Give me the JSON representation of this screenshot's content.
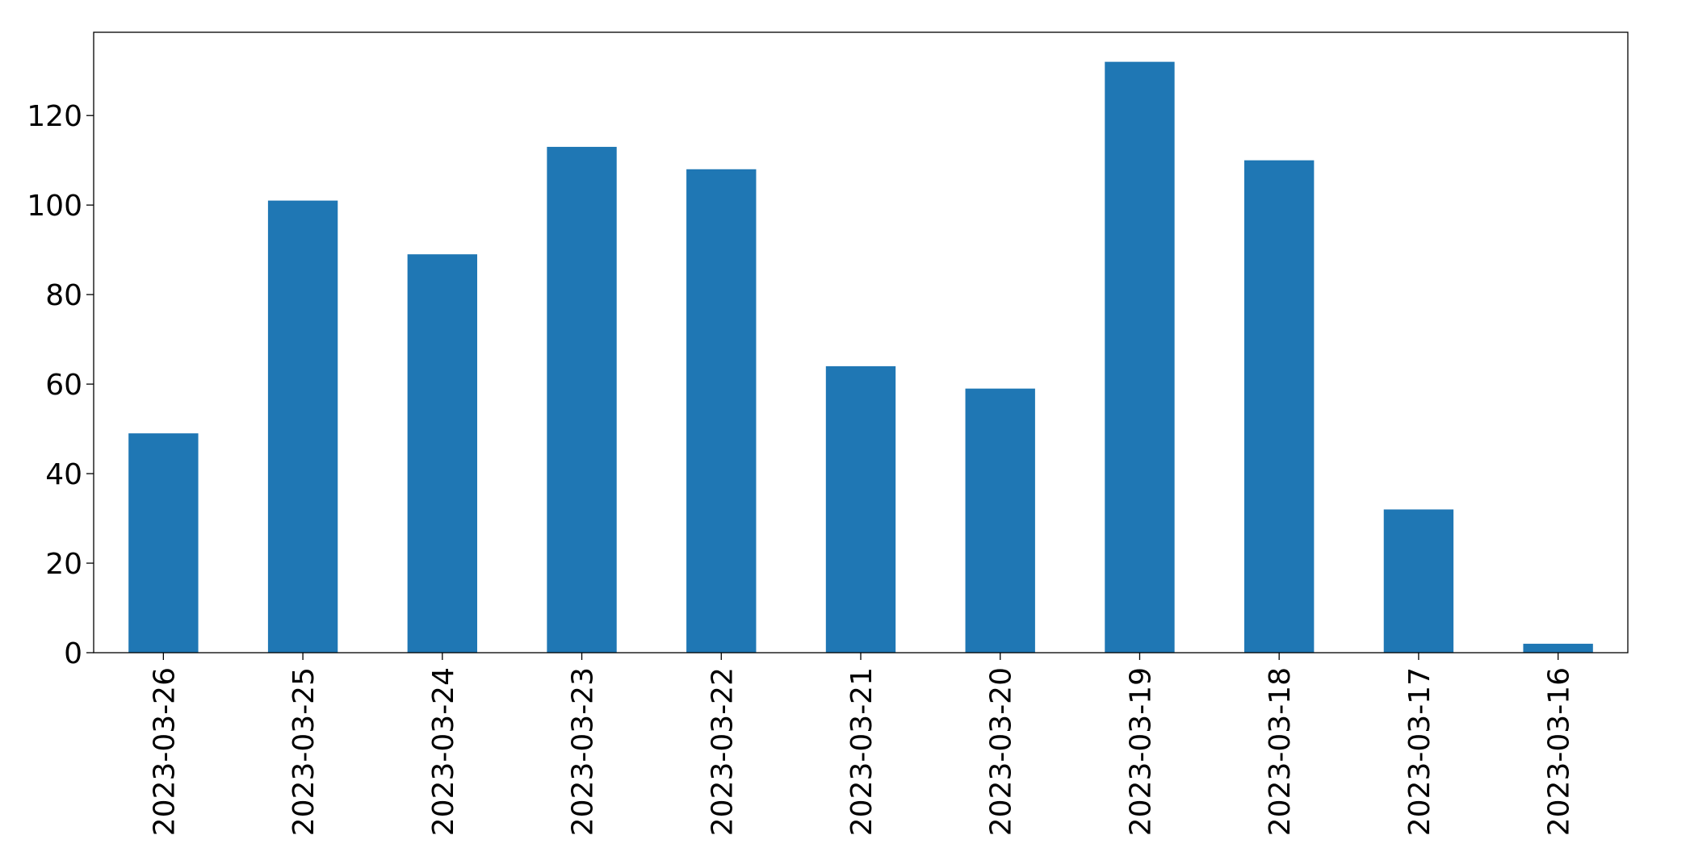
{
  "chart_data": {
    "type": "bar",
    "categories": [
      "2023-03-26",
      "2023-03-25",
      "2023-03-24",
      "2023-03-23",
      "2023-03-22",
      "2023-03-21",
      "2023-03-20",
      "2023-03-19",
      "2023-03-18",
      "2023-03-17",
      "2023-03-16"
    ],
    "values": [
      49,
      101,
      89,
      113,
      108,
      64,
      59,
      132,
      110,
      32,
      2
    ],
    "color": "#1f77b4",
    "ylim": [
      0,
      138.6
    ],
    "yticks": [
      0,
      20,
      40,
      60,
      80,
      100,
      120
    ],
    "grid": false
  }
}
